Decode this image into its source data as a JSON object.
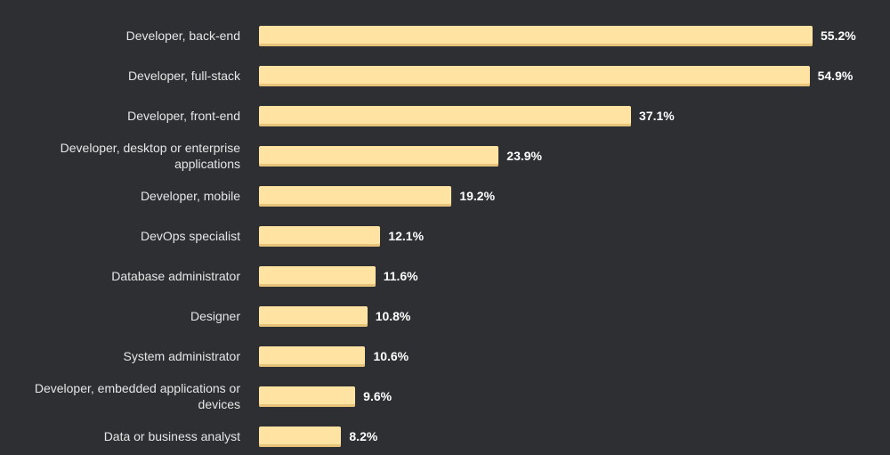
{
  "chart_data": {
    "type": "bar",
    "orientation": "horizontal",
    "categories": [
      "Developer, back-end",
      "Developer, full-stack",
      "Developer, front-end",
      "Developer, desktop or enterprise applications",
      "Developer, mobile",
      "DevOps specialist",
      "Database administrator",
      "Designer",
      "System administrator",
      "Developer, embedded applications or devices",
      "Data or business analyst"
    ],
    "label_lines": [
      [
        "Developer, back-end"
      ],
      [
        "Developer, full-stack"
      ],
      [
        "Developer, front-end"
      ],
      [
        "Developer, desktop or enterprise",
        "applications"
      ],
      [
        "Developer, mobile"
      ],
      [
        "DevOps specialist"
      ],
      [
        "Database administrator"
      ],
      [
        "Designer"
      ],
      [
        "System administrator"
      ],
      [
        "Developer, embedded applications or",
        "devices"
      ],
      [
        "Data or business analyst"
      ]
    ],
    "values": [
      55.2,
      54.9,
      37.1,
      23.9,
      19.2,
      12.1,
      11.6,
      10.8,
      10.6,
      9.6,
      8.2
    ],
    "value_labels": [
      "55.2%",
      "54.9%",
      "37.1%",
      "23.9%",
      "19.2%",
      "12.1%",
      "11.6%",
      "10.8%",
      "10.6%",
      "9.6%",
      "8.2%"
    ],
    "title": "",
    "xlabel": "",
    "ylabel": "",
    "xlim": [
      0,
      55.2
    ],
    "grid": false,
    "colors": {
      "background": "#2d2f33",
      "bar": "#ffe3a3",
      "bar_shadow": "#e8c47a",
      "label_text": "#e6e6e6",
      "value_text": "#ffffff"
    }
  }
}
